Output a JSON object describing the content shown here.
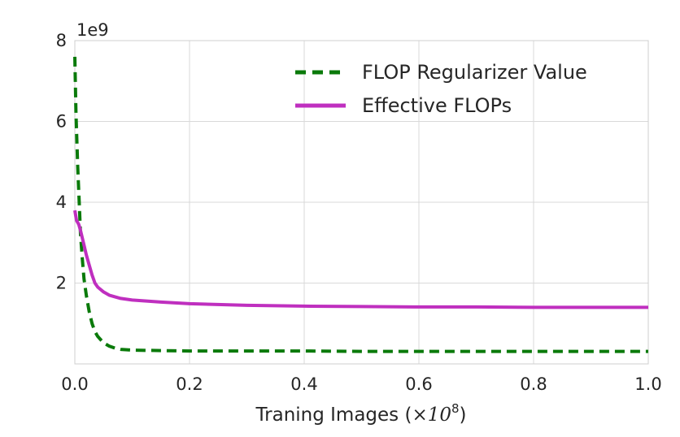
{
  "chart_data": {
    "type": "line",
    "xlabel_main": "Traning Images (",
    "xlabel_times": "×10",
    "xlabel_exp": "8",
    "xlabel_close": ")",
    "ylabel": "",
    "y_offset_label": "1e9",
    "xlim": [
      0.0,
      1.0
    ],
    "ylim": [
      0.0,
      8.0
    ],
    "x_ticks": [
      0.0,
      0.2,
      0.4,
      0.6,
      0.8,
      1.0
    ],
    "x_tick_labels": [
      "0.0",
      "0.2",
      "0.4",
      "0.6",
      "0.8",
      "1.0"
    ],
    "y_ticks": [
      2,
      4,
      6,
      8
    ],
    "y_tick_labels": [
      "2",
      "4",
      "6",
      "8"
    ],
    "grid": true,
    "legend_position": "top-right",
    "series": [
      {
        "name": "FLOP Regularizer Value",
        "color": "#0a7a0a",
        "style": "dashed",
        "x": [
          0.0,
          0.002,
          0.005,
          0.008,
          0.01,
          0.013,
          0.016,
          0.02,
          0.025,
          0.03,
          0.035,
          0.04,
          0.05,
          0.06,
          0.07,
          0.08,
          0.1,
          0.15,
          0.2,
          0.3,
          0.4,
          0.5,
          0.6,
          0.7,
          0.8,
          0.9,
          1.0
        ],
        "y": [
          7.6,
          6.2,
          4.9,
          3.9,
          3.2,
          2.6,
          2.1,
          1.7,
          1.3,
          1.0,
          0.8,
          0.68,
          0.52,
          0.44,
          0.39,
          0.36,
          0.34,
          0.33,
          0.32,
          0.32,
          0.32,
          0.31,
          0.31,
          0.31,
          0.31,
          0.31,
          0.31
        ]
      },
      {
        "name": "Effective FLOPs",
        "color": "#bf2fbf",
        "style": "solid",
        "x": [
          0.0,
          0.003,
          0.007,
          0.01,
          0.015,
          0.02,
          0.025,
          0.03,
          0.035,
          0.04,
          0.05,
          0.06,
          0.07,
          0.08,
          0.1,
          0.12,
          0.15,
          0.2,
          0.3,
          0.4,
          0.5,
          0.6,
          0.7,
          0.8,
          0.9,
          1.0
        ],
        "y": [
          3.8,
          3.55,
          3.45,
          3.3,
          3.0,
          2.7,
          2.45,
          2.2,
          2.0,
          1.9,
          1.78,
          1.7,
          1.66,
          1.62,
          1.58,
          1.56,
          1.53,
          1.49,
          1.45,
          1.43,
          1.42,
          1.41,
          1.41,
          1.4,
          1.4,
          1.4
        ]
      }
    ]
  }
}
